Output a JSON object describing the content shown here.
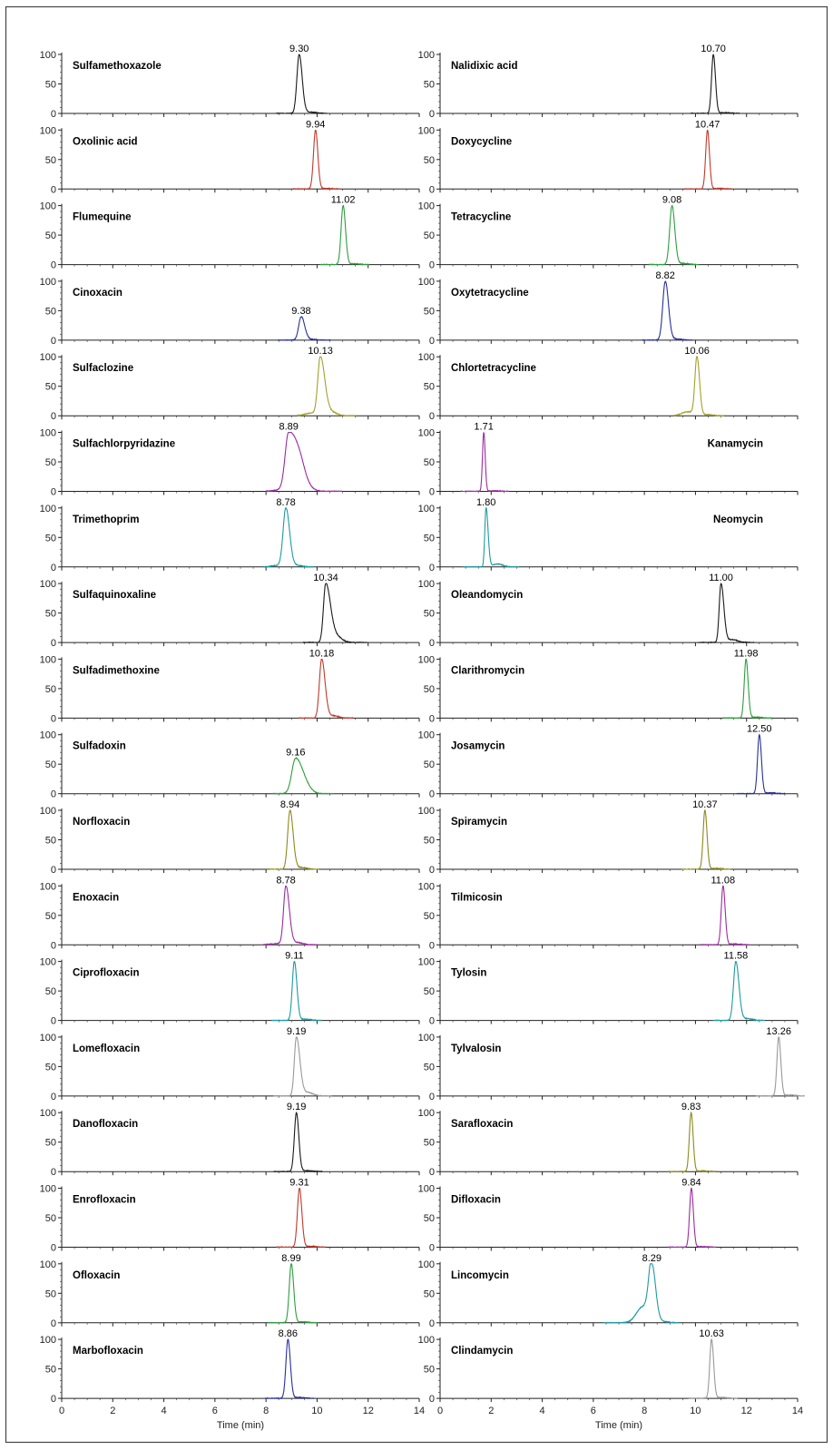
{
  "chart_data": {
    "type": "line",
    "description_axes": {
      "y_ticks": [
        "0",
        "50",
        "100"
      ],
      "x_ticks": [
        "0",
        "2",
        "4",
        "6",
        "8",
        "10",
        "12",
        "14"
      ],
      "xlabel": "Time (min)",
      "xlim": [
        0,
        14
      ],
      "ylim": [
        0,
        100
      ]
    },
    "columns": [
      {
        "xlabel": "Time (min)",
        "panels": [
          {
            "name": "Sulfamethoxazole",
            "rt": 9.3,
            "rt_label": "9.30",
            "color": "#1a1a1a",
            "tail": 0.05,
            "front": 0,
            "width": 0.09
          },
          {
            "name": "Oxolinic acid",
            "rt": 9.94,
            "rt_label": "9.94",
            "color": "#c0392b",
            "tail": 0.02,
            "front": 0,
            "width": 0.08
          },
          {
            "name": "Flumequine",
            "rt": 11.02,
            "rt_label": "11.02",
            "color": "#2e9e3e",
            "tail": 0.03,
            "front": 0,
            "width": 0.08
          },
          {
            "name": "Cinoxacin",
            "rt": 9.38,
            "rt_label": "9.38",
            "color": "#27309a",
            "tail": 0.06,
            "front": 0,
            "width": 0.1,
            "height": 40
          },
          {
            "name": "Sulfaclozine",
            "rt": 10.13,
            "rt_label": "10.13",
            "color": "#a3a12a",
            "tail": 0.12,
            "front": 0.1,
            "width": 0.1
          },
          {
            "name": "Sulfachlorpyridazine",
            "rt": 8.89,
            "rt_label": "8.89",
            "color": "#9b2ca0",
            "tail": 0.3,
            "front": 0.05,
            "width": 0.14
          },
          {
            "name": "Trimethoprim",
            "rt": 8.78,
            "rt_label": "8.78",
            "color": "#1e9aa0",
            "tail": 0.05,
            "front": 0.05,
            "width": 0.11
          },
          {
            "name": "Sulfaquinoxaline",
            "rt": 10.34,
            "rt_label": "10.34",
            "color": "#1a1a1a",
            "tail": 0.18,
            "front": 0,
            "width": 0.09
          },
          {
            "name": "Sulfadimethoxine",
            "rt": 10.18,
            "rt_label": "10.18",
            "color": "#c0392b",
            "tail": 0.08,
            "front": 0,
            "width": 0.09
          },
          {
            "name": "Sulfadoxin",
            "rt": 9.16,
            "rt_label": "9.16",
            "color": "#2e9e3e",
            "tail": 0.15,
            "front": 0,
            "width": 0.15,
            "height": 60
          },
          {
            "name": "Norfloxacin",
            "rt": 8.94,
            "rt_label": "8.94",
            "color": "#8c8a1e",
            "tail": 0.06,
            "front": 0,
            "width": 0.09
          },
          {
            "name": "Enoxacin",
            "rt": 8.78,
            "rt_label": "8.78",
            "color": "#9b2ca0",
            "tail": 0.08,
            "front": 0.05,
            "width": 0.09
          },
          {
            "name": "Ciprofloxacin",
            "rt": 9.11,
            "rt_label": "9.11",
            "color": "#1e9aa0",
            "tail": 0.04,
            "front": 0,
            "width": 0.08
          },
          {
            "name": "Lomefloxacin",
            "rt": 9.19,
            "rt_label": "9.19",
            "color": "#999999",
            "tail": 0.12,
            "front": 0,
            "width": 0.08
          },
          {
            "name": "Danofloxacin",
            "rt": 9.19,
            "rt_label": "9.19",
            "color": "#1a1a1a",
            "tail": 0.03,
            "front": 0,
            "width": 0.08
          },
          {
            "name": "Enrofloxacin",
            "rt": 9.31,
            "rt_label": "9.31",
            "color": "#c0392b",
            "tail": 0.03,
            "front": 0,
            "width": 0.08
          },
          {
            "name": "Ofloxacin",
            "rt": 8.99,
            "rt_label": "8.99",
            "color": "#2e9e3e",
            "tail": 0.03,
            "front": 0,
            "width": 0.08
          },
          {
            "name": "Marbofloxacin",
            "rt": 8.86,
            "rt_label": "8.86",
            "color": "#27309a",
            "tail": 0.03,
            "front": 0,
            "width": 0.08
          }
        ]
      },
      {
        "xlabel": "Time (min)",
        "panels": [
          {
            "name": "Nalidixic acid",
            "rt": 10.7,
            "rt_label": "10.70",
            "color": "#1a1a1a",
            "tail": 0.03,
            "front": 0,
            "width": 0.07
          },
          {
            "name": "Doxycycline",
            "rt": 10.47,
            "rt_label": "10.47",
            "color": "#c0392b",
            "tail": 0.02,
            "front": 0,
            "width": 0.07
          },
          {
            "name": "Tetracycline",
            "rt": 9.08,
            "rt_label": "9.08",
            "color": "#2e9e3e",
            "tail": 0.04,
            "front": 0,
            "width": 0.09
          },
          {
            "name": "Oxytetracycline",
            "rt": 8.82,
            "rt_label": "8.82",
            "color": "#27309a",
            "tail": 0.04,
            "front": 0,
            "width": 0.1
          },
          {
            "name": "Chlortetracycline",
            "rt": 10.06,
            "rt_label": "10.06",
            "color": "#a3a12a",
            "tail": 0.04,
            "front": 0.15,
            "width": 0.08
          },
          {
            "name": "Kanamycin",
            "rt": 1.71,
            "rt_label": "1.71",
            "color": "#9b2ca0",
            "tail": 0.02,
            "front": 0,
            "width": 0.05,
            "label_right": true
          },
          {
            "name": "Neomycin",
            "rt": 1.8,
            "rt_label": "1.80",
            "color": "#1e9aa0",
            "tail": 0.1,
            "front": 0,
            "width": 0.05,
            "label_right": true
          },
          {
            "name": "Oleandomycin",
            "rt": 11.0,
            "rt_label": "11.00",
            "color": "#1a1a1a",
            "tail": 0.1,
            "front": 0,
            "width": 0.07
          },
          {
            "name": "Clarithromycin",
            "rt": 11.98,
            "rt_label": "11.98",
            "color": "#2e9e3e",
            "tail": 0.03,
            "front": 0,
            "width": 0.07
          },
          {
            "name": "Josamycin",
            "rt": 12.5,
            "rt_label": "12.50",
            "color": "#27309a",
            "tail": 0.03,
            "front": 0,
            "width": 0.07
          },
          {
            "name": "Spiramycin",
            "rt": 10.37,
            "rt_label": "10.37",
            "color": "#8c8a1e",
            "tail": 0.03,
            "front": 0,
            "width": 0.07
          },
          {
            "name": "Tilmicosin",
            "rt": 11.08,
            "rt_label": "11.08",
            "color": "#9b2ca0",
            "tail": 0.03,
            "front": 0,
            "width": 0.07
          },
          {
            "name": "Tylosin",
            "rt": 11.58,
            "rt_label": "11.58",
            "color": "#1e9aa0",
            "tail": 0.06,
            "front": 0,
            "width": 0.09
          },
          {
            "name": "Tylvalosin",
            "rt": 13.26,
            "rt_label": "13.26",
            "color": "#999999",
            "tail": 0.03,
            "front": 0,
            "width": 0.07
          },
          {
            "name": "Sarafloxacin",
            "rt": 9.83,
            "rt_label": "9.83",
            "color": "#8c8a1e",
            "tail": 0.02,
            "front": 0,
            "width": 0.07
          },
          {
            "name": "Difloxacin",
            "rt": 9.84,
            "rt_label": "9.84",
            "color": "#9b2ca0",
            "tail": 0.02,
            "front": 0,
            "width": 0.07
          },
          {
            "name": "Lincomycin",
            "rt": 8.29,
            "rt_label": "8.29",
            "color": "#1e9aa0",
            "tail": 0.04,
            "front": 0.6,
            "width": 0.12
          },
          {
            "name": "Clindamycin",
            "rt": 10.63,
            "rt_label": "10.63",
            "color": "#999999",
            "tail": 0.03,
            "front": 0,
            "width": 0.07
          }
        ]
      }
    ]
  }
}
